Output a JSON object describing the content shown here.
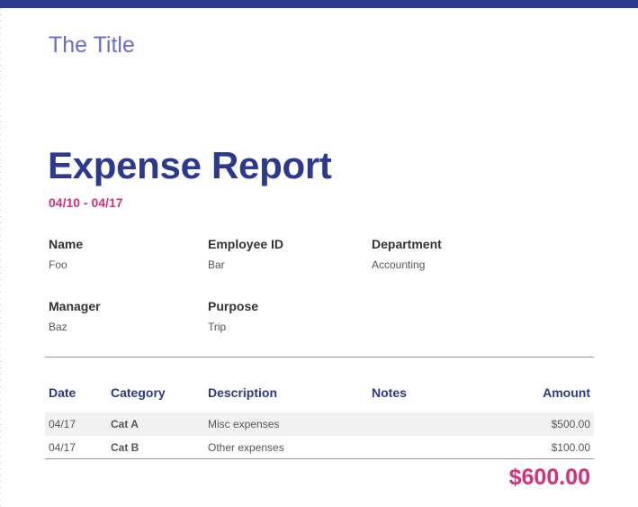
{
  "document": {
    "title": "The Title",
    "heading": "Expense Report",
    "date_range": "04/10 - 04/17"
  },
  "fields": {
    "name": {
      "label": "Name",
      "value": "Foo"
    },
    "employee_id": {
      "label": "Employee ID",
      "value": "Bar"
    },
    "department": {
      "label": "Department",
      "value": "Accounting"
    },
    "manager": {
      "label": "Manager",
      "value": "Baz"
    },
    "purpose": {
      "label": "Purpose",
      "value": "Trip"
    }
  },
  "table": {
    "headers": {
      "date": "Date",
      "category": "Category",
      "description": "Description",
      "notes": "Notes",
      "amount": "Amount"
    },
    "rows": [
      {
        "date": "04/17",
        "category": "Cat A",
        "description": "Misc expenses",
        "notes": "",
        "amount": "$500.00"
      },
      {
        "date": "04/17",
        "category": "Cat B",
        "description": "Other expenses",
        "notes": "",
        "amount": "$100.00"
      }
    ]
  },
  "total": "$600.00",
  "colors": {
    "primary": "#2b3990",
    "accent": "#d6307c",
    "title": "#6b6bd6"
  }
}
